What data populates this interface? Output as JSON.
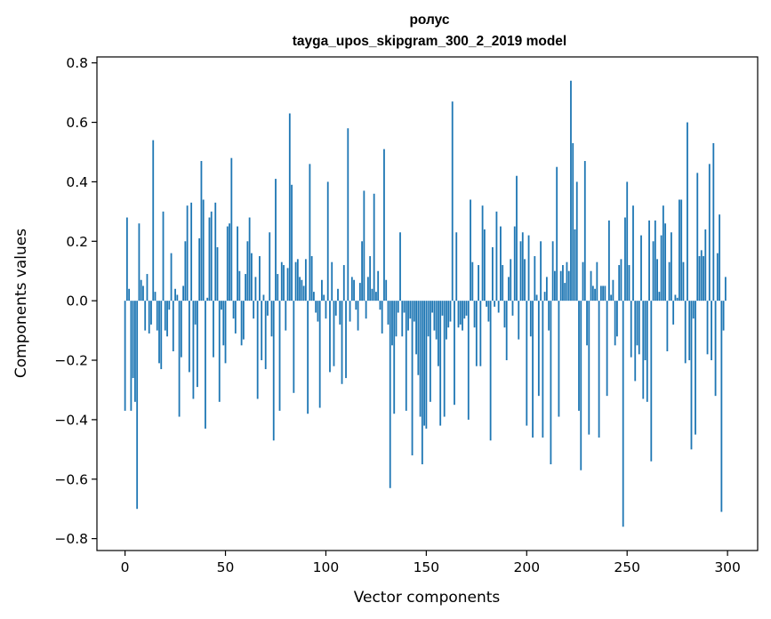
{
  "chart_data": {
    "type": "bar",
    "title": "ролус",
    "subtitle": "tayga_upos_skipgram_300_2_2019 model",
    "xlabel": "Vector components",
    "ylabel": "Components values",
    "xlim": [
      -14,
      315
    ],
    "ylim": [
      -0.84,
      0.82
    ],
    "xticks": [
      0,
      50,
      100,
      150,
      200,
      250,
      300
    ],
    "xtick_labels": [
      "0",
      "50",
      "100",
      "150",
      "200",
      "250",
      "300"
    ],
    "yticks": [
      -0.8,
      -0.6,
      -0.4,
      -0.2,
      0.0,
      0.2,
      0.4,
      0.6,
      0.8
    ],
    "ytick_labels": [
      "−0.8",
      "−0.6",
      "−0.4",
      "−0.2",
      "0.0",
      "0.2",
      "0.4",
      "0.6",
      "0.8"
    ],
    "bar_color": "#1f77b4",
    "series": [
      {
        "name": "ролус",
        "values": [
          -0.37,
          0.28,
          0.04,
          -0.37,
          -0.26,
          -0.34,
          -0.7,
          0.26,
          0.07,
          0.05,
          -0.1,
          0.09,
          -0.11,
          -0.08,
          0.54,
          0.03,
          -0.1,
          -0.21,
          -0.23,
          0.3,
          -0.1,
          -0.12,
          -0.03,
          0.16,
          -0.17,
          0.04,
          0.02,
          -0.39,
          -0.19,
          0.05,
          0.2,
          0.32,
          -0.24,
          0.33,
          -0.33,
          -0.08,
          -0.29,
          0.21,
          0.47,
          0.34,
          -0.43,
          0.01,
          0.28,
          0.3,
          -0.19,
          0.33,
          0.18,
          -0.34,
          -0.03,
          -0.15,
          -0.21,
          0.25,
          0.26,
          0.48,
          -0.06,
          -0.11,
          0.25,
          0.1,
          -0.15,
          -0.13,
          0.09,
          0.2,
          0.28,
          0.16,
          -0.06,
          0.08,
          -0.33,
          0.15,
          -0.2,
          0.02,
          -0.23,
          -0.05,
          0.23,
          -0.12,
          -0.47,
          0.41,
          0.09,
          -0.37,
          0.13,
          0.12,
          -0.1,
          0.11,
          0.63,
          0.39,
          -0.31,
          0.13,
          0.14,
          0.08,
          0.07,
          0.05,
          0.14,
          -0.38,
          0.46,
          0.15,
          0.03,
          -0.04,
          -0.07,
          -0.36,
          0.07,
          0.02,
          -0.06,
          0.4,
          -0.24,
          0.13,
          -0.22,
          -0.05,
          0.04,
          -0.08,
          -0.28,
          0.12,
          -0.26,
          0.58,
          -0.07,
          0.08,
          0.07,
          -0.03,
          -0.1,
          0.06,
          0.2,
          0.37,
          -0.06,
          0.08,
          0.15,
          0.04,
          0.36,
          0.03,
          0.1,
          -0.03,
          -0.11,
          0.51,
          0.07,
          -0.08,
          -0.63,
          -0.15,
          -0.38,
          -0.12,
          -0.04,
          0.23,
          -0.12,
          -0.04,
          -0.37,
          -0.1,
          -0.06,
          -0.52,
          -0.07,
          -0.18,
          -0.25,
          -0.39,
          -0.55,
          -0.42,
          -0.43,
          -0.12,
          -0.34,
          -0.04,
          -0.1,
          -0.13,
          -0.22,
          -0.42,
          -0.05,
          -0.39,
          -0.13,
          -0.09,
          -0.07,
          0.67,
          -0.35,
          0.23,
          -0.09,
          -0.08,
          -0.1,
          -0.06,
          -0.05,
          -0.4,
          0.34,
          0.13,
          -0.09,
          -0.22,
          0.12,
          -0.22,
          0.32,
          0.24,
          -0.02,
          -0.07,
          -0.47,
          0.18,
          -0.02,
          0.3,
          -0.04,
          0.25,
          0.12,
          -0.09,
          -0.2,
          0.08,
          0.14,
          -0.05,
          0.25,
          0.42,
          -0.13,
          0.2,
          0.23,
          0.14,
          -0.42,
          0.22,
          -0.12,
          -0.46,
          0.15,
          0.02,
          -0.32,
          0.2,
          -0.46,
          0.03,
          0.08,
          -0.1,
          -0.55,
          0.2,
          0.1,
          0.45,
          -0.39,
          0.1,
          0.12,
          0.06,
          0.13,
          0.1,
          0.74,
          0.53,
          0.24,
          0.4,
          -0.37,
          -0.57,
          0.13,
          0.47,
          -0.15,
          -0.45,
          0.1,
          0.05,
          0.04,
          0.13,
          -0.46,
          0.05,
          0.05,
          0.05,
          -0.32,
          0.27,
          0.02,
          0.07,
          -0.15,
          -0.12,
          0.12,
          0.14,
          -0.76,
          0.28,
          0.4,
          0.12,
          -0.19,
          0.32,
          -0.27,
          -0.15,
          -0.18,
          0.22,
          -0.33,
          -0.2,
          -0.34,
          0.27,
          -0.54,
          0.2,
          0.27,
          0.14,
          0.03,
          0.22,
          0.32,
          0.26,
          -0.17,
          0.13,
          0.23,
          -0.08,
          0.02,
          0.01,
          0.34,
          0.34,
          0.13,
          -0.21,
          0.6,
          -0.2,
          -0.5,
          -0.06,
          -0.45,
          0.43,
          0.15,
          0.17,
          0.15,
          0.24,
          -0.18,
          0.46,
          -0.2,
          0.53,
          -0.32,
          0.16,
          0.29,
          -0.71,
          -0.1,
          0.08
        ]
      }
    ]
  }
}
